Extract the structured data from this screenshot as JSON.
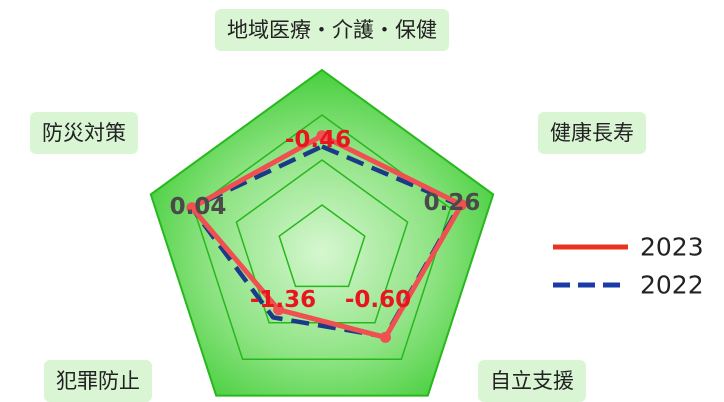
{
  "chart_data": {
    "type": "radar",
    "title": "",
    "axes": [
      "地域医療・介護・保健",
      "健康長寿",
      "自立支援",
      "犯罪防止",
      "防災対策"
    ],
    "range": [
      -3,
      1
    ],
    "rings": [
      -3,
      -2,
      -1,
      0,
      1
    ],
    "series": [
      {
        "name": "2023",
        "values": [
          -0.46,
          0.26,
          -0.6,
          -1.36,
          0.04
        ],
        "value_labels": [
          "-0.46",
          "0.26",
          "-0.60",
          "-1.36",
          "0.04"
        ],
        "label_colors": [
          "#e8141e",
          "#4a4a4a",
          "#e8141e",
          "#e8141e",
          "#4a4a4a"
        ],
        "color": "#f05050",
        "style": "solid"
      },
      {
        "name": "2022",
        "values": [
          -0.7,
          0.22,
          -0.62,
          -1.15,
          0.05
        ],
        "color": "#1a3a8a",
        "style": "dashed"
      }
    ],
    "legend_position": "right",
    "colors": {
      "outer_fill": "#44d23a",
      "inner_fill": "#d6f7d0",
      "grid": "#27b81d",
      "label_bg": "#d9f5d3"
    }
  }
}
